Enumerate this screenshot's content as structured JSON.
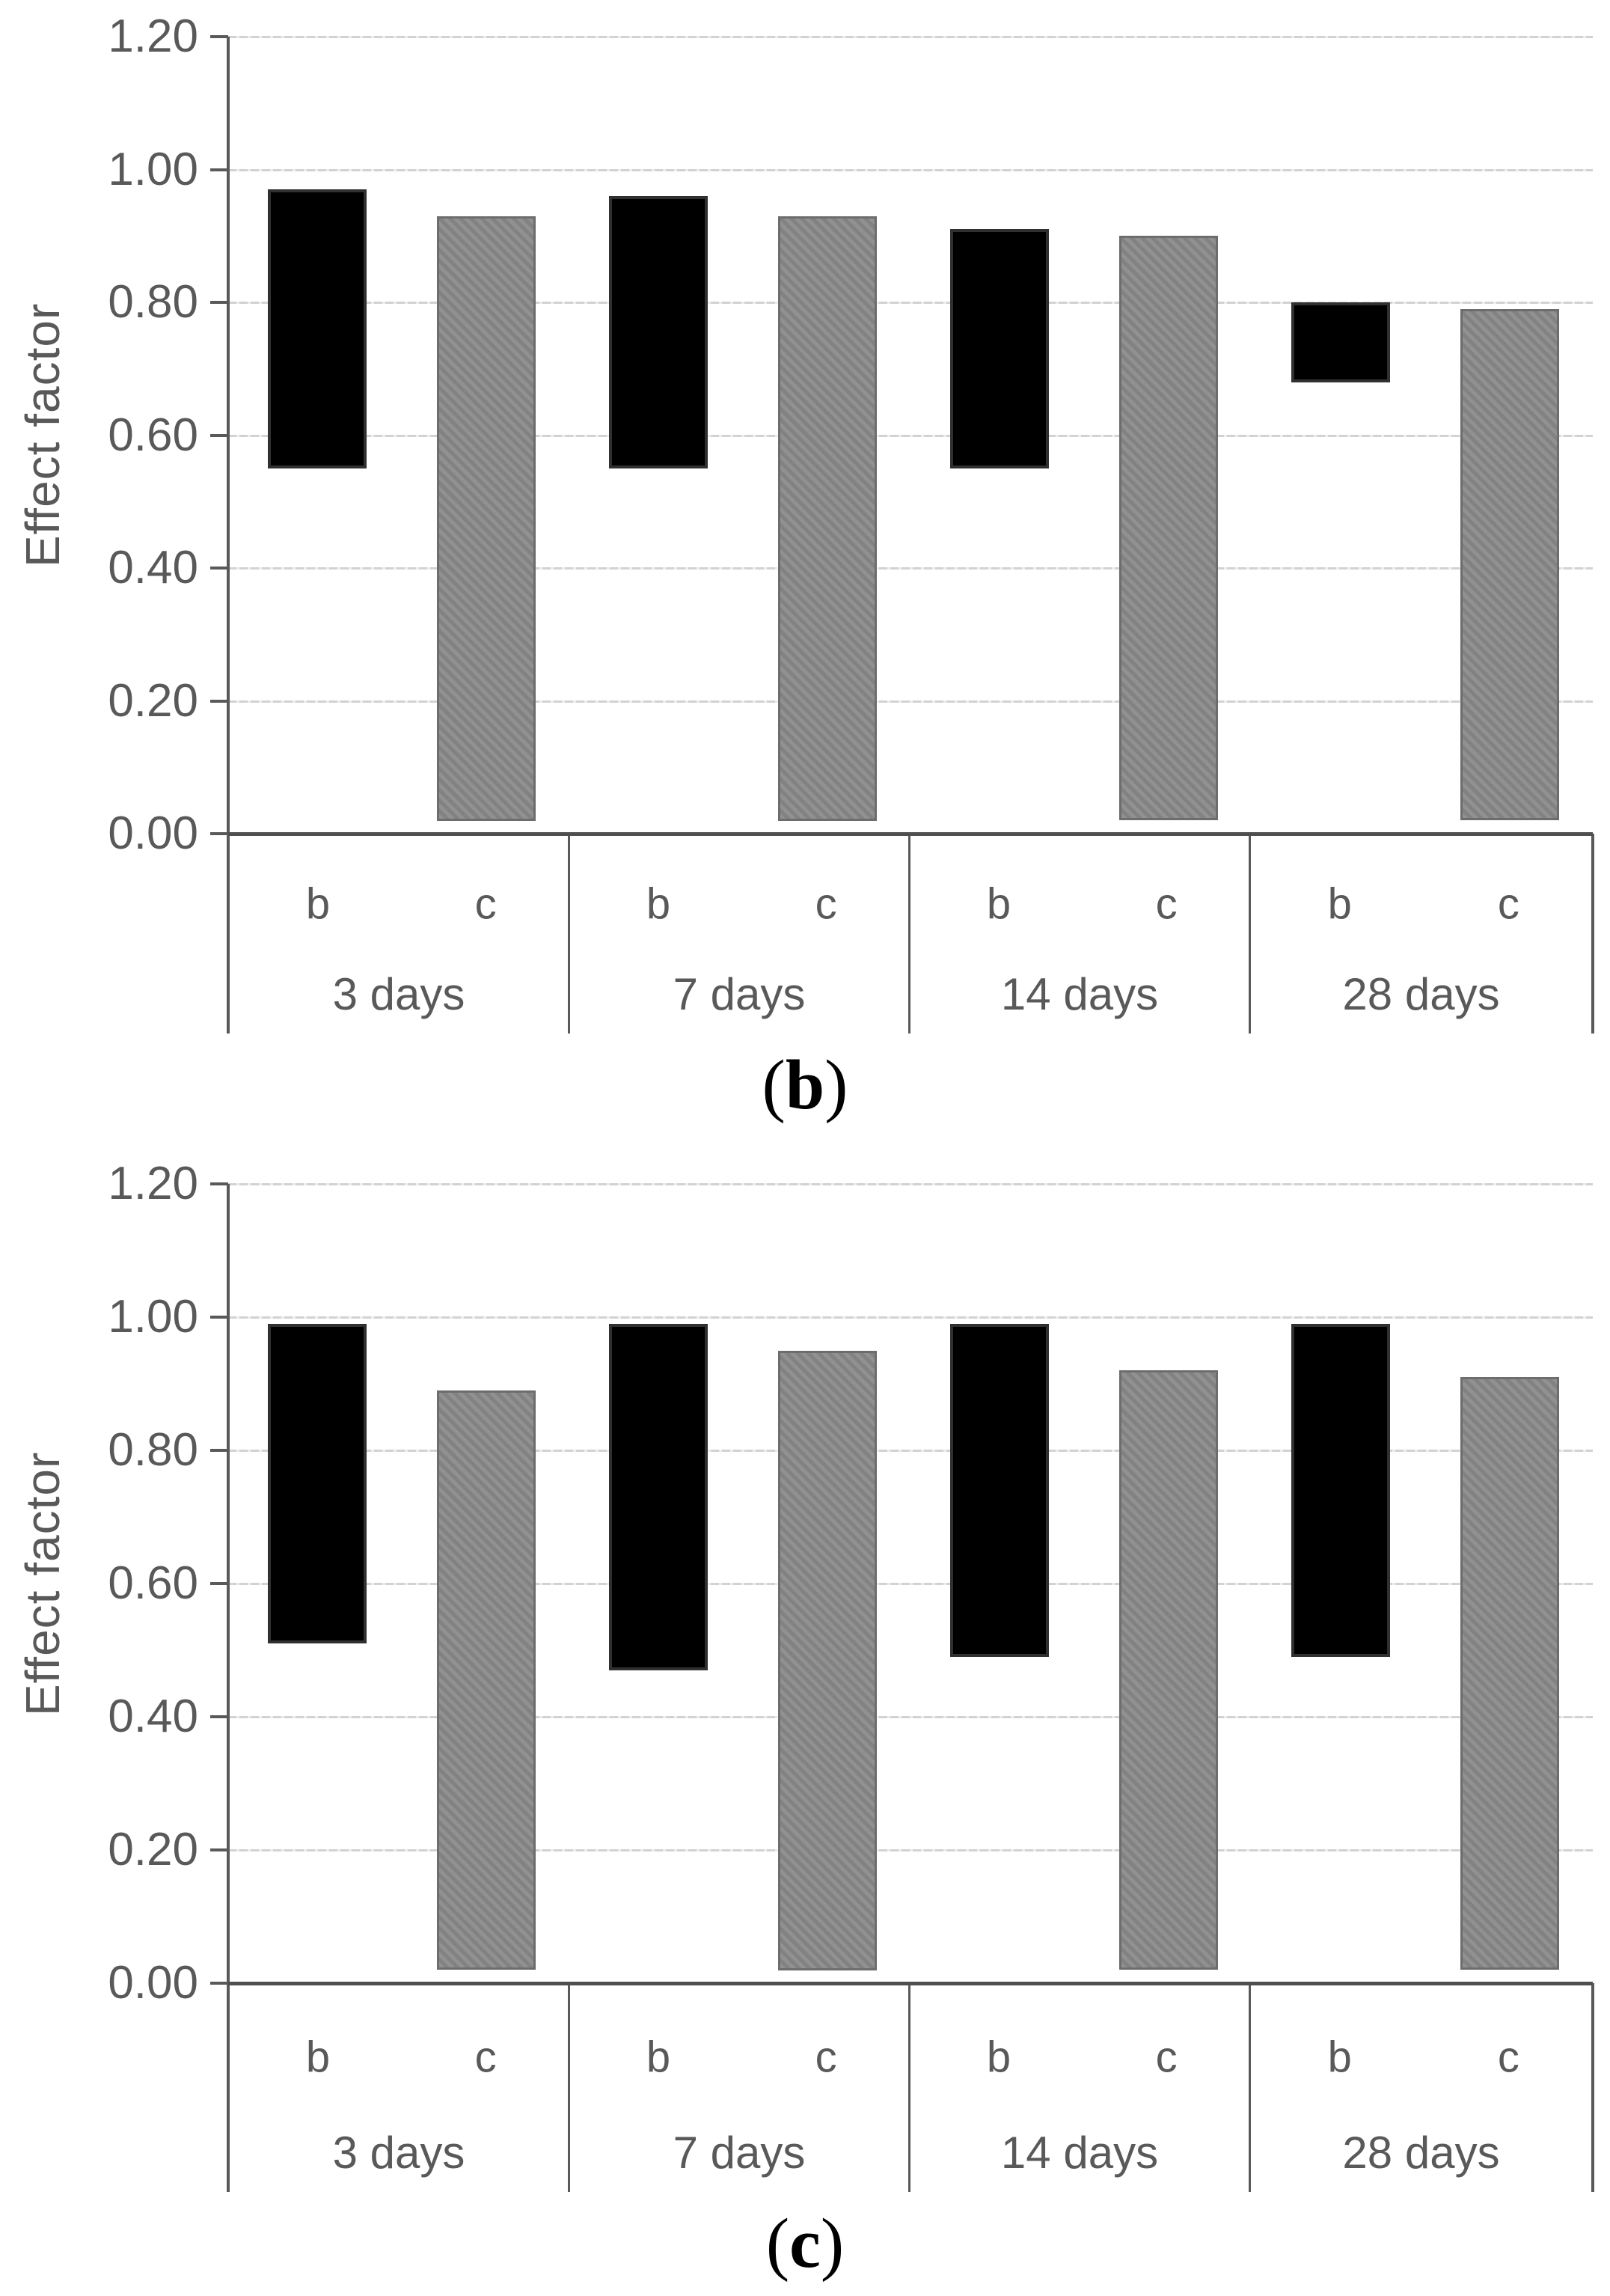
{
  "figure": {
    "ylabel": "Effect factor",
    "series_labels": [
      "b",
      "c"
    ],
    "colors": {
      "series_b": "#000000",
      "series_c": "#8a8a8a",
      "axis": "#595959",
      "gridline": "#d9d9d9",
      "text": "#595959"
    }
  },
  "chart_data": [
    {
      "type": "bar",
      "subtype": "floating-column",
      "caption": "(b)",
      "caption_parts": {
        "open": "(",
        "letter": "b",
        "close": ")"
      },
      "ylabel": "Effect factor",
      "ylim": [
        0.0,
        1.2
      ],
      "ytick_labels": [
        "1.20",
        "1.00",
        "0.80",
        "0.60",
        "0.40",
        "0.20",
        "0.00"
      ],
      "categories": [
        "3 days",
        "7 days",
        "14 days",
        "28 days"
      ],
      "bar_labels": [
        "b",
        "c"
      ],
      "grid": "horizontal",
      "legend": "none",
      "series": [
        {
          "name": "b",
          "color": "#000000",
          "ranges": [
            [
              0.55,
              0.97
            ],
            [
              0.55,
              0.96
            ],
            [
              0.55,
              0.91
            ],
            [
              0.68,
              0.8
            ]
          ]
        },
        {
          "name": "c",
          "color": "#8a8a8a",
          "ranges": [
            [
              0.02,
              0.93
            ],
            [
              0.02,
              0.93
            ],
            [
              0.02,
              0.9
            ],
            [
              0.02,
              0.79
            ]
          ]
        }
      ]
    },
    {
      "type": "bar",
      "subtype": "floating-column",
      "caption": "(c)",
      "caption_parts": {
        "open": "(",
        "letter": "c",
        "close": ")"
      },
      "ylabel": "Effect factor",
      "ylim": [
        0.0,
        1.2
      ],
      "ytick_labels": [
        "1.20",
        "1.00",
        "0.80",
        "0.60",
        "0.40",
        "0.20",
        "0.00"
      ],
      "categories": [
        "3 days",
        "7 days",
        "14 days",
        "28 days"
      ],
      "bar_labels": [
        "b",
        "c"
      ],
      "grid": "horizontal",
      "legend": "none",
      "series": [
        {
          "name": "b",
          "color": "#000000",
          "ranges": [
            [
              0.51,
              0.99
            ],
            [
              0.47,
              0.99
            ],
            [
              0.49,
              0.99
            ],
            [
              0.49,
              0.99
            ]
          ]
        },
        {
          "name": "c",
          "color": "#8a8a8a",
          "ranges": [
            [
              0.02,
              0.89
            ],
            [
              0.02,
              0.95
            ],
            [
              0.02,
              0.92
            ],
            [
              0.02,
              0.91
            ]
          ]
        }
      ]
    }
  ]
}
